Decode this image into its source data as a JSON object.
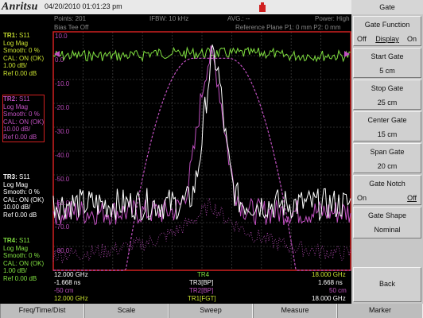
{
  "brand": "Anritsu",
  "datetime": "04/20/2010 01:01:23 pm",
  "status": {
    "points": "Points: 201",
    "ifbw": "IFBW: 10 kHz",
    "avg": "AVG.: --",
    "power": "Power: High",
    "bias_tee": "Bias Tee Off",
    "ref_plane": "Reference Plane P1: 0 mm P2: 0 mm"
  },
  "traces": [
    {
      "title": "TR1:",
      "param": "S11",
      "lines": [
        "Log Mag",
        "Smooth: 0 %",
        "CAL: ON (OK)",
        "1.00 dB/",
        "Ref 0.00 dB"
      ],
      "color": "#c8e030"
    },
    {
      "title": "TR2:",
      "param": "S11",
      "lines": [
        "Log Mag",
        "Smooth: 0 %",
        "CAL: ON (OK)",
        "10.00 dB/",
        "Ref 0.00 dB"
      ],
      "color": "#c050c0"
    },
    {
      "title": "TR3:",
      "param": "S11",
      "lines": [
        "Log Mag",
        "Smooth: 0 %",
        "CAL: ON (OK)",
        "10.00 dB/",
        "Ref 0.00 dB"
      ],
      "color": "#ffffff"
    },
    {
      "title": "TR4:",
      "param": "S11",
      "lines": [
        "Log Mag",
        "Smooth: 0 %",
        "CAL: ON (OK)",
        "1.00 dB/",
        "Ref 0.00 dB"
      ],
      "color": "#80e040"
    }
  ],
  "y_ticks": [
    "10.0",
    "0.0",
    "-10.0",
    "-20.0",
    "-30.0",
    "-40.0",
    "-50.0",
    "-60.0",
    "-70.0",
    "-80.0"
  ],
  "footer": {
    "left_freq": "12.000 GHz",
    "left_time": "-1.668 ns",
    "left_dist": "-50 cm",
    "left_freq2": "12.000 GHz",
    "mid_tr4": "TR4",
    "mid_tr3": "TR3[BP]",
    "mid_tr2": "TR2[BP]",
    "mid_tr1": "TR1[FGT]",
    "right_freq": "18.000 GHz",
    "right_time": "1.668 ns",
    "right_dist": "50 cm",
    "right_freq2": "18.000 GHz"
  },
  "softkey_menu": {
    "title": "Gate",
    "gate_function": {
      "label": "Gate Function",
      "off": "Off",
      "display": "Display",
      "on": "On"
    },
    "start_gate": {
      "label": "Start Gate",
      "value": "5 cm"
    },
    "stop_gate": {
      "label": "Stop Gate",
      "value": "25 cm"
    },
    "center_gate": {
      "label": "Center Gate",
      "value": "15 cm"
    },
    "span_gate": {
      "label": "Span Gate",
      "value": "20 cm"
    },
    "gate_notch": {
      "label": "Gate Notch",
      "on": "On",
      "off": "Off"
    },
    "gate_shape": {
      "label": "Gate Shape",
      "value": "Nominal"
    },
    "back": "Back"
  },
  "bottom_tabs": [
    "Freq/Time/Dist",
    "Scale",
    "Sweep",
    "Measure",
    "Marker"
  ],
  "colors": {
    "grid_border": "#d02020",
    "tr1": "#c8e030",
    "tr2": "#c050c0",
    "tr3": "#ffffff",
    "tr4": "#80e040"
  }
}
